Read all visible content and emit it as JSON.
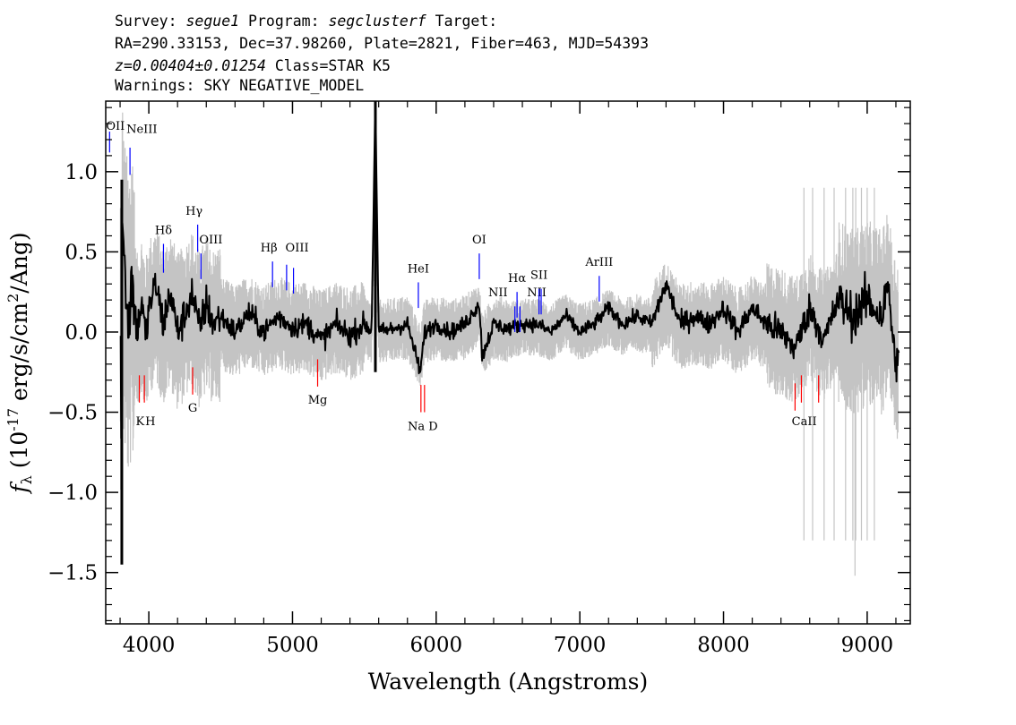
{
  "header": {
    "line1": {
      "a": "Survey: ",
      "survey": "segue1",
      "b": " Program: ",
      "program": "segclusterf",
      "c": " Target:"
    },
    "line2": "RA=290.33153, Dec=37.98260, Plate=2821, Fiber=463, MJD=54393",
    "line3": {
      "z": "z=0.00404±0.01254",
      "rest": " Class=STAR K5"
    },
    "line4": "Warnings: SKY NEGATIVE_MODEL"
  },
  "chart_data": {
    "type": "line",
    "xlabel": "Wavelength (Angstroms)",
    "ylabel": {
      "f": "f",
      "sub": "λ",
      "rest": " (10",
      "sup": "-17",
      "units": " erg/s/cm",
      "sup2": "2",
      "units2": "/Ang)"
    },
    "xlim": [
      3700,
      9300
    ],
    "ylim": [
      -1.82,
      1.44
    ],
    "xticks": [
      4000,
      5000,
      6000,
      7000,
      8000,
      9000
    ],
    "xtick_labels": [
      "4000",
      "5000",
      "6000",
      "7000",
      "8000",
      "9000"
    ],
    "yticks": [
      -1.5,
      -1.0,
      -0.5,
      0.0,
      0.5,
      1.0
    ],
    "ytick_labels": [
      "−1.5",
      "−1.0",
      "−0.5",
      "0.0",
      "0.5",
      "1.0"
    ],
    "series": [
      {
        "color": "#c0c0c0",
        "role": "error band"
      },
      {
        "color": "#000000",
        "role": "flux",
        "values": [
          [
            3805,
            -1.45
          ],
          [
            3815,
            0.95
          ],
          [
            3825,
            0.45
          ],
          [
            3840,
            0.3
          ],
          [
            3860,
            0.05
          ],
          [
            3880,
            0.35
          ],
          [
            3900,
            0.15
          ],
          [
            3920,
            0.0
          ],
          [
            3950,
            0.2
          ],
          [
            3980,
            -0.05
          ],
          [
            4000,
            0.15
          ],
          [
            4050,
            0.3
          ],
          [
            4100,
            0.05
          ],
          [
            4150,
            0.25
          ],
          [
            4200,
            0.0
          ],
          [
            4250,
            0.1
          ],
          [
            4300,
            0.25
          ],
          [
            4350,
            0.02
          ],
          [
            4400,
            0.18
          ],
          [
            4450,
            0.05
          ],
          [
            4500,
            0.1
          ],
          [
            4600,
            0.0
          ],
          [
            4700,
            0.12
          ],
          [
            4800,
            0.0
          ],
          [
            4900,
            0.1
          ],
          [
            5000,
            0.03
          ],
          [
            5100,
            0.05
          ],
          [
            5200,
            -0.05
          ],
          [
            5300,
            0.05
          ],
          [
            5400,
            -0.02
          ],
          [
            5500,
            0.05
          ],
          [
            5550,
            0.0
          ],
          [
            5577,
            1.44
          ],
          [
            5600,
            0.0
          ],
          [
            5700,
            0.02
          ],
          [
            5800,
            0.05
          ],
          [
            5890,
            -0.25
          ],
          [
            5920,
            0.0
          ],
          [
            6000,
            0.05
          ],
          [
            6100,
            0.0
          ],
          [
            6200,
            0.05
          ],
          [
            6300,
            0.18
          ],
          [
            6320,
            -0.15
          ],
          [
            6400,
            0.05
          ],
          [
            6500,
            0.02
          ],
          [
            6600,
            0.05
          ],
          [
            6700,
            0.05
          ],
          [
            6800,
            0.0
          ],
          [
            6900,
            0.1
          ],
          [
            7000,
            0.0
          ],
          [
            7100,
            0.05
          ],
          [
            7200,
            0.15
          ],
          [
            7300,
            0.05
          ],
          [
            7400,
            0.1
          ],
          [
            7500,
            0.05
          ],
          [
            7600,
            0.3
          ],
          [
            7700,
            0.05
          ],
          [
            7800,
            0.1
          ],
          [
            7900,
            0.05
          ],
          [
            8000,
            0.15
          ],
          [
            8100,
            0.0
          ],
          [
            8200,
            0.15
          ],
          [
            8300,
            0.05
          ],
          [
            8400,
            0.0
          ],
          [
            8500,
            -0.1
          ],
          [
            8600,
            0.15
          ],
          [
            8700,
            -0.05
          ],
          [
            8800,
            0.2
          ],
          [
            8900,
            0.1
          ],
          [
            9000,
            0.2
          ],
          [
            9100,
            0.1
          ],
          [
            9150,
            0.3
          ],
          [
            9180,
            -0.1
          ],
          [
            9220,
            -0.2
          ]
        ]
      }
    ],
    "emission_lines": [
      {
        "label": "OII",
        "wl": 3727,
        "color": "#0000ff"
      },
      {
        "label": "NeIII",
        "wl": 3869,
        "color": "#0000ff"
      },
      {
        "label": "Hδ",
        "wl": 4102,
        "color": "#0000ff"
      },
      {
        "label": "Hγ",
        "wl": 4340,
        "color": "#0000ff"
      },
      {
        "label": "OIII",
        "wl": 4363,
        "color": "#0000ff"
      },
      {
        "label": "Hβ",
        "wl": 4861,
        "color": "#0000ff"
      },
      {
        "label": "OIII",
        "wl": 4959,
        "color": "#0000ff"
      },
      {
        "label": "OIII",
        "wl": 5007,
        "color": "#0000ff"
      },
      {
        "label": "HeI",
        "wl": 5876,
        "color": "#0000ff"
      },
      {
        "label": "OI",
        "wl": 6300,
        "color": "#0000ff"
      },
      {
        "label": "NII",
        "wl": 6548,
        "color": "#0000ff"
      },
      {
        "label": "Hα",
        "wl": 6563,
        "color": "#0000ff"
      },
      {
        "label": "NII",
        "wl": 6583,
        "color": "#0000ff"
      },
      {
        "label": "SII",
        "wl": 6716,
        "color": "#0000ff"
      },
      {
        "label": "SII",
        "wl": 6731,
        "color": "#0000ff"
      },
      {
        "label": "ArIII",
        "wl": 7135,
        "color": "#0000ff"
      }
    ],
    "absorption_lines": [
      {
        "label": "K",
        "wl": 3934,
        "color": "#ff0000"
      },
      {
        "label": "H",
        "wl": 3969,
        "color": "#ff0000"
      },
      {
        "label": "G",
        "wl": 4305,
        "color": "#ff0000"
      },
      {
        "label": "Mg",
        "wl": 5175,
        "color": "#ff0000"
      },
      {
        "label": "Na D",
        "wl": 5894,
        "color": "#ff0000"
      },
      {
        "label": "CaII",
        "wl": 8498,
        "color": "#ff0000"
      },
      {
        "label": "CaII",
        "wl": 8542,
        "color": "#ff0000"
      },
      {
        "label": "CaII",
        "wl": 8662,
        "color": "#ff0000"
      }
    ]
  }
}
